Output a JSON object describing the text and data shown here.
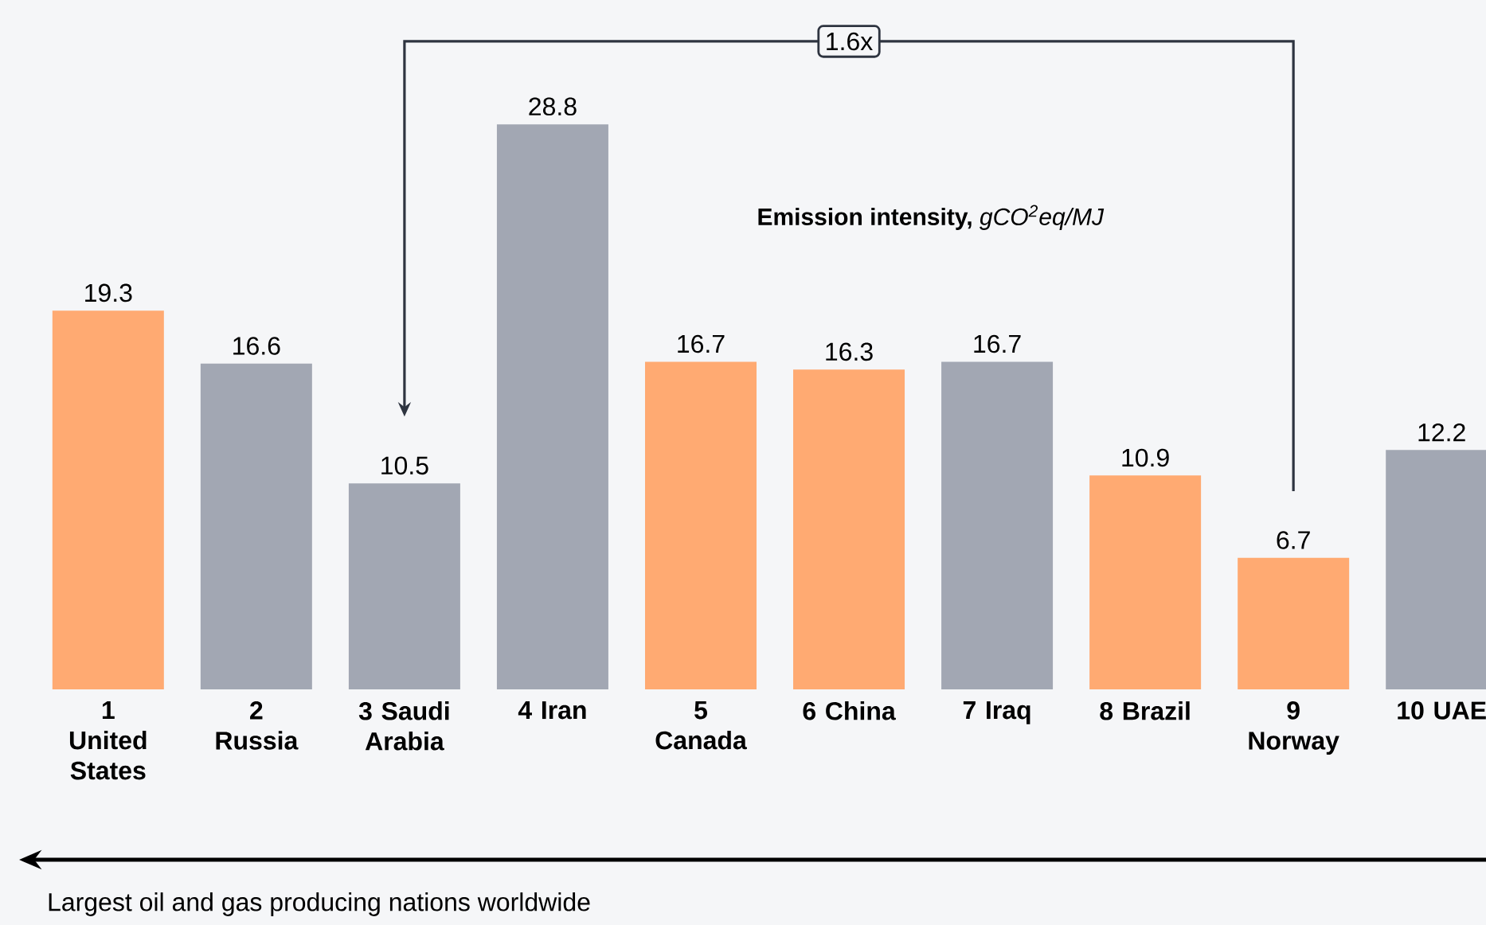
{
  "chart_data": {
    "type": "bar",
    "title": "**Emission intensity,** *gCO$^{2}$eq/MJ*",
    "categories": [
      "1 United States",
      "2 Russia",
      "3 Saudi Arabia",
      "4 Iran",
      "5 Canada",
      "6 China",
      "7 Iraq",
      "8 Brazil",
      "9 Norway",
      "10 UAE"
    ],
    "values": [
      19.3,
      16.6,
      10.5,
      28.8,
      16.7,
      16.3,
      16.7,
      10.9,
      6.7,
      12.2
    ],
    "colors": [
      "#ffaa72",
      "#a2a7b3",
      "#a2a7b3",
      "#a2a7b3",
      "#ffaa72",
      "#ffaa72",
      "#a2a7b3",
      "#ffaa72",
      "#ffaa72",
      "#a2a7b3"
    ],
    "data_labels": true,
    "annotations": [
      "1.6x",
      "Largest oil and gas producing nations worldwide"
    ]
  }
}
